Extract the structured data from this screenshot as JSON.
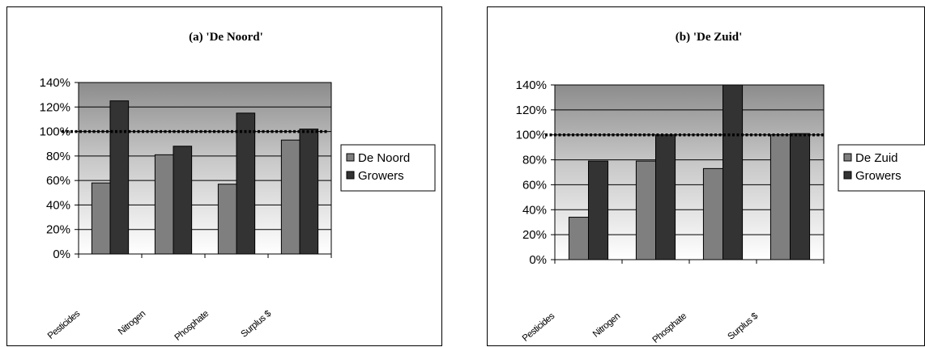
{
  "chart_data": [
    {
      "type": "bar",
      "title": "(a) 'De Noord'",
      "categories": [
        "Pesticides",
        "Nitrogen",
        "Phosphate",
        "Surplus $"
      ],
      "series": [
        {
          "name": "De Noord",
          "values": [
            58,
            81,
            57,
            93
          ],
          "color": "#7f7f7f"
        },
        {
          "name": "Growers",
          "values": [
            125,
            88,
            115,
            102
          ],
          "color": "#333333"
        }
      ],
      "ylim": [
        0,
        140
      ],
      "yticks": [
        "0%",
        "20%",
        "40%",
        "60%",
        "80%",
        "100%",
        "120%",
        "140%"
      ],
      "reference_line": 100,
      "legend": "right",
      "plot_background": "gradient-gray",
      "grid": true
    },
    {
      "type": "bar",
      "title": "(b) 'De Zuid'",
      "categories": [
        "Pesticides",
        "Nitrogen",
        "Phosphate",
        "Surplus $"
      ],
      "series": [
        {
          "name": "De Zuid",
          "values": [
            34,
            79,
            73,
            100
          ],
          "color": "#7f7f7f"
        },
        {
          "name": "Growers",
          "values": [
            79,
            100,
            140,
            101
          ],
          "color": "#333333"
        }
      ],
      "ylim": [
        0,
        140
      ],
      "yticks": [
        "0%",
        "20%",
        "40%",
        "60%",
        "80%",
        "100%",
        "120%",
        "140%"
      ],
      "reference_line": 100,
      "legend": "right",
      "plot_background": "gradient-gray",
      "grid": true
    }
  ]
}
